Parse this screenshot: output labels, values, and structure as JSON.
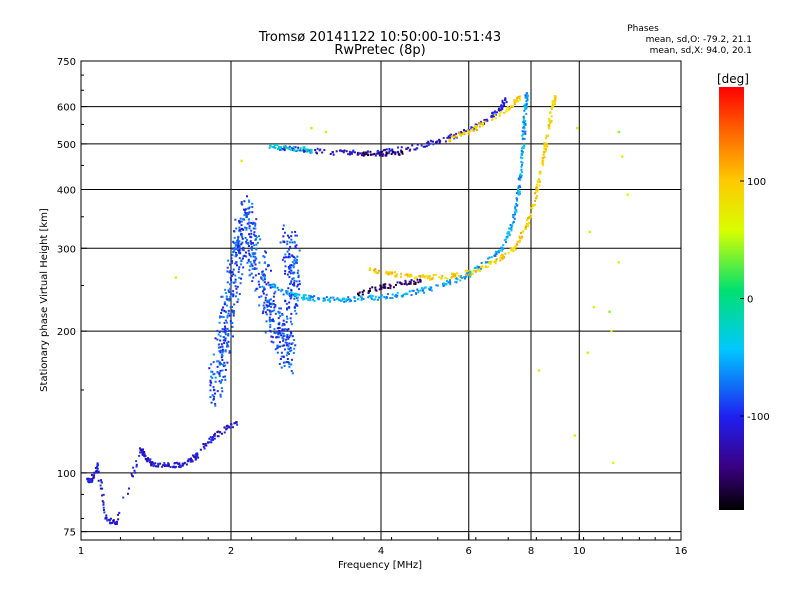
{
  "chart_data": {
    "type": "scatter",
    "title": "Tromsø 20141122 10:50:00-10:51:43",
    "subtitle": "RwPretec (8p)",
    "xlabel": "Frequency [MHz]",
    "ylabel": "Stationary phase Virtual Height [km]",
    "x_scale": "log2",
    "y_scale": "log",
    "xlim": [
      1,
      16
    ],
    "ylim": [
      72,
      750
    ],
    "x_ticks": [
      1,
      2,
      4,
      6,
      8,
      10,
      16
    ],
    "x_tick_labels": [
      "1",
      "2",
      "4",
      "6",
      "8",
      "10",
      "16"
    ],
    "y_ticks": [
      75,
      100,
      200,
      300,
      400,
      500,
      600,
      750
    ],
    "y_tick_labels": [
      "75",
      "100",
      "200",
      "300",
      "400",
      "500",
      "600",
      "750"
    ],
    "grid": true,
    "phase_panel": {
      "heading": "Phases",
      "line_o": "mean, sd,O: -79.2, 21.1",
      "line_x": "mean, sd,X:  94.0, 20.1"
    },
    "colorbar": {
      "unit_label": "[deg]",
      "range": [
        -180,
        180
      ],
      "ticks": [
        100,
        0,
        -100
      ],
      "tick_labels": [
        "100",
        "0",
        "-100"
      ]
    },
    "series": [
      {
        "group": "o-lower-low",
        "phase": -110,
        "points": [
          [
            1.03,
            97
          ],
          [
            1.05,
            96
          ],
          [
            1.08,
            104
          ],
          [
            1.12,
            80
          ],
          [
            1.18,
            78
          ],
          [
            1.32,
            112
          ],
          [
            1.35,
            107
          ],
          [
            1.4,
            104
          ],
          [
            1.5,
            104
          ],
          [
            1.6,
            104
          ],
          [
            1.7,
            108
          ],
          [
            1.8,
            116
          ],
          [
            1.9,
            122
          ],
          [
            2.05,
            128
          ]
        ]
      },
      {
        "group": "o-low-spread",
        "phase": -85,
        "points": [
          [
            1.85,
            150
          ],
          [
            1.9,
            170
          ],
          [
            1.95,
            200
          ],
          [
            2.0,
            240
          ],
          [
            2.05,
            280
          ],
          [
            2.1,
            320
          ],
          [
            2.15,
            350
          ],
          [
            2.2,
            300
          ],
          [
            2.3,
            260
          ],
          [
            2.4,
            220
          ],
          [
            2.5,
            200
          ],
          [
            2.6,
            180
          ],
          [
            2.65,
            240
          ],
          [
            2.7,
            280
          ],
          [
            2.55,
            310
          ]
        ]
      },
      {
        "group": "o-low-trace",
        "phase": -55,
        "points": [
          [
            2.4,
            250
          ],
          [
            2.6,
            240
          ],
          [
            2.8,
            236
          ],
          [
            3.0,
            234
          ],
          [
            3.3,
            233
          ],
          [
            3.6,
            234
          ],
          [
            4.0,
            236
          ],
          [
            4.5,
            240
          ],
          [
            5.0,
            246
          ],
          [
            5.5,
            254
          ],
          [
            6.0,
            264
          ],
          [
            6.5,
            280
          ],
          [
            7.0,
            300
          ],
          [
            7.3,
            330
          ],
          [
            7.5,
            370
          ],
          [
            7.6,
            420
          ],
          [
            7.7,
            480
          ],
          [
            7.75,
            540
          ],
          [
            7.8,
            600
          ],
          [
            7.85,
            640
          ]
        ]
      },
      {
        "group": "o-low-purple",
        "phase": -150,
        "points": [
          [
            3.6,
            240
          ],
          [
            4.0,
            248
          ],
          [
            4.4,
            252
          ],
          [
            4.8,
            256
          ]
        ]
      },
      {
        "group": "x-low-trace",
        "phase": 95,
        "points": [
          [
            3.8,
            270
          ],
          [
            4.2,
            265
          ],
          [
            4.6,
            262
          ],
          [
            5.0,
            260
          ],
          [
            5.6,
            262
          ],
          [
            6.2,
            268
          ],
          [
            6.8,
            282
          ],
          [
            7.4,
            300
          ],
          [
            7.8,
            330
          ],
          [
            8.1,
            370
          ],
          [
            8.3,
            420
          ],
          [
            8.5,
            480
          ],
          [
            8.7,
            540
          ],
          [
            8.85,
            600
          ],
          [
            8.95,
            630
          ]
        ]
      },
      {
        "group": "o-upper-trace",
        "phase": -110,
        "points": [
          [
            2.5,
            490
          ],
          [
            2.8,
            485
          ],
          [
            3.2,
            480
          ],
          [
            3.6,
            478
          ],
          [
            4.0,
            480
          ],
          [
            4.5,
            488
          ],
          [
            5.0,
            500
          ],
          [
            5.5,
            515
          ],
          [
            6.0,
            535
          ],
          [
            6.5,
            560
          ],
          [
            6.9,
            590
          ],
          [
            7.1,
            620
          ]
        ]
      },
      {
        "group": "o-upper-cyan",
        "phase": -30,
        "points": [
          [
            2.4,
            495
          ],
          [
            2.6,
            490
          ],
          [
            2.9,
            485
          ]
        ]
      },
      {
        "group": "o-upper-purple",
        "phase": -150,
        "points": [
          [
            3.6,
            476
          ],
          [
            4.0,
            476
          ],
          [
            4.4,
            480
          ]
        ]
      },
      {
        "group": "x-upper-trace",
        "phase": 95,
        "points": [
          [
            5.5,
            510
          ],
          [
            6.0,
            530
          ],
          [
            6.4,
            550
          ],
          [
            7.3,
            600
          ],
          [
            7.6,
            630
          ]
        ]
      },
      {
        "group": "sporadic",
        "phase": 60,
        "points": [
          [
            1.55,
            260
          ],
          [
            2.1,
            460
          ],
          [
            2.9,
            540
          ],
          [
            3.1,
            530
          ],
          [
            8.3,
            165
          ],
          [
            9.8,
            120
          ],
          [
            10.4,
            180
          ],
          [
            10.5,
            325
          ],
          [
            10.7,
            225
          ],
          [
            11.5,
            220
          ],
          [
            11.6,
            200
          ],
          [
            11.7,
            105
          ],
          [
            12.0,
            530
          ],
          [
            12.0,
            280
          ],
          [
            12.2,
            470
          ],
          [
            12.5,
            390
          ],
          [
            9.9,
            540
          ]
        ]
      }
    ]
  }
}
